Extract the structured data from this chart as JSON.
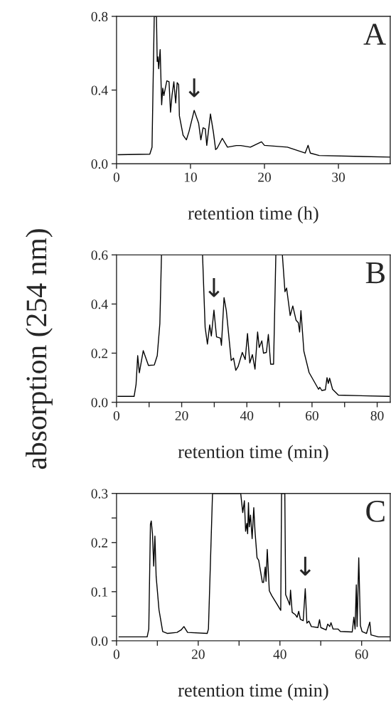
{
  "chart_data": [
    {
      "type": "line",
      "xlabel": "retention time (h)",
      "x": [
        0.2,
        4.5,
        4.8,
        5.1,
        5.4,
        5.5,
        5.6,
        5.7,
        5.9,
        6.1,
        6.25,
        6.4,
        6.8,
        7.1,
        7.3,
        7.5,
        7.75,
        8.0,
        8.2,
        8.4,
        8.5,
        9.0,
        9.45,
        9.8,
        10.5,
        11.1,
        11.4,
        11.7,
        12.0,
        12.2,
        12.7,
        13.1,
        13.4,
        13.6,
        14.3,
        15.0,
        16.2,
        16.8,
        18.1,
        19.6,
        20.0,
        23.1,
        25.5,
        25.9,
        26.2,
        27.4,
        37.0
      ],
      "series": [
        {
          "color": "#000000",
          "values": [
            0.049,
            0.052,
            0.09,
            0.8,
            0.8,
            0.555,
            0.58,
            0.516,
            0.62,
            0.32,
            0.41,
            0.37,
            0.45,
            0.445,
            0.28,
            0.37,
            0.445,
            0.33,
            0.44,
            0.43,
            0.26,
            0.155,
            0.13,
            0.175,
            0.29,
            0.22,
            0.13,
            0.195,
            0.19,
            0.1,
            0.27,
            0.17,
            0.077,
            0.084,
            0.138,
            0.09,
            0.099,
            0.099,
            0.09,
            0.119,
            0.1,
            0.09,
            0.058,
            0.1,
            0.058,
            0.045,
            0.036
          ]
        }
      ],
      "xlim": [
        0,
        37
      ],
      "ylim": [
        0,
        0.8
      ],
      "xticks": [
        0,
        10,
        20,
        30
      ],
      "yticks": [
        {
          "value": 0,
          "label": "0.0"
        },
        {
          "value": 0.4,
          "label": "0.4"
        },
        {
          "value": 0.8,
          "label": "0.8"
        }
      ],
      "annotations": [
        "A",
        {
          "text": "↓",
          "x": 10.5,
          "y": 0.29
        }
      ],
      "grid": false,
      "legend": false
    },
    {
      "type": "line",
      "xlabel": "retention time (min)",
      "ylabel": "absorption (254 nm)",
      "x": [
        0.4,
        5.4,
        6.0,
        6.5,
        7.0,
        8.2,
        9.8,
        11.6,
        12.5,
        13.3,
        13.8,
        26.4,
        27.2,
        27.9,
        28.6,
        29.1,
        29.9,
        30.7,
        31.9,
        32.2,
        33.0,
        33.7,
        35.2,
        35.9,
        36.6,
        37.3,
        38.6,
        39.5,
        40.2,
        40.9,
        41.7,
        42.5,
        43.3,
        43.8,
        44.6,
        45.1,
        46.0,
        46.6,
        47.3,
        48.2,
        48.9,
        50.9,
        51.7,
        52.2,
        53.3,
        54.1,
        55.1,
        55.8,
        56.2,
        56.6,
        57.5,
        59.1,
        62.0,
        62.4,
        63.0,
        64.1,
        64.6,
        65.0,
        65.4,
        66.3,
        68.1,
        83.7
      ],
      "series": [
        {
          "color": "#000000",
          "values": [
            0.024,
            0.024,
            0.073,
            0.19,
            0.12,
            0.21,
            0.15,
            0.152,
            0.19,
            0.32,
            0.6,
            0.6,
            0.305,
            0.237,
            0.315,
            0.27,
            0.375,
            0.266,
            0.261,
            0.232,
            0.426,
            0.373,
            0.17,
            0.18,
            0.13,
            0.145,
            0.203,
            0.174,
            0.28,
            0.16,
            0.194,
            0.135,
            0.286,
            0.223,
            0.25,
            0.2,
            0.203,
            0.276,
            0.155,
            0.155,
            0.6,
            0.6,
            0.45,
            0.465,
            0.353,
            0.392,
            0.334,
            0.324,
            0.286,
            0.373,
            0.208,
            0.121,
            0.053,
            0.061,
            0.048,
            0.051,
            0.1,
            0.077,
            0.098,
            0.053,
            0.029,
            0.024
          ]
        }
      ],
      "xlim": [
        0,
        84
      ],
      "ylim": [
        0,
        0.6
      ],
      "xticks": [
        0,
        {
          "value": 10,
          "label": null
        },
        20,
        {
          "value": 30,
          "label": null
        },
        40,
        {
          "value": 50,
          "label": null
        },
        60,
        {
          "value": 70,
          "label": null
        },
        80
      ],
      "yticks": [
        {
          "value": 0,
          "label": "0.0"
        },
        {
          "value": 0.2,
          "label": "0.2"
        },
        {
          "value": 0.4,
          "label": "0.4"
        },
        {
          "value": 0.6,
          "label": "0.6"
        }
      ],
      "annotations": [
        "B",
        {
          "text": "↓",
          "x": 29.9,
          "y": 0.375
        }
      ],
      "grid": false,
      "legend": false
    },
    {
      "type": "line",
      "xlabel": "retention time (min)",
      "x": [
        0.6,
        7.5,
        7.9,
        8.3,
        8.5,
        8.8,
        9.1,
        9.4,
        9.7,
        10.4,
        11.3,
        12.5,
        14.8,
        15.8,
        16.5,
        17.4,
        22.2,
        22.5,
        23.5,
        30.4,
        30.9,
        31.3,
        31.6,
        31.9,
        32.1,
        32.3,
        32.5,
        32.8,
        33.2,
        33.6,
        33.9,
        34.4,
        34.8,
        35.7,
        36.0,
        36.4,
        36.6,
        36.9,
        37.4,
        38.0,
        39.1,
        40.2,
        40.4,
        41.2,
        41.4,
        42.0,
        42.4,
        42.6,
        43.0,
        43.8,
        44.2,
        44.6,
        45.0,
        45.7,
        46.2,
        46.6,
        47.1,
        47.7,
        49.3,
        49.7,
        50.0,
        51.3,
        51.7,
        52.2,
        52.5,
        53.0,
        54.2,
        54.8,
        57.7,
        58.1,
        58.4,
        58.7,
        58.9,
        59.3,
        59.7,
        60.1,
        61.2,
        62.0,
        62.3,
        64.1,
        67.0
      ],
      "series": [
        {
          "color": "#000000",
          "values": [
            0.008,
            0.008,
            0.024,
            0.237,
            0.244,
            0.218,
            0.152,
            0.213,
            0.131,
            0.063,
            0.019,
            0.015,
            0.017,
            0.022,
            0.029,
            0.017,
            0.015,
            0.024,
            0.3,
            0.3,
            0.261,
            0.285,
            0.223,
            0.239,
            0.218,
            0.281,
            0.232,
            0.256,
            0.208,
            0.271,
            0.223,
            0.169,
            0.164,
            0.119,
            0.119,
            0.15,
            0.121,
            0.186,
            0.102,
            0.092,
            0.077,
            0.062,
            0.3,
            0.3,
            0.094,
            0.082,
            0.073,
            0.103,
            0.058,
            0.053,
            0.048,
            0.06,
            0.044,
            0.041,
            0.106,
            0.036,
            0.04,
            0.029,
            0.027,
            0.043,
            0.027,
            0.022,
            0.034,
            0.029,
            0.037,
            0.024,
            0.024,
            0.019,
            0.018,
            0.048,
            0.024,
            0.114,
            0.029,
            0.169,
            0.031,
            0.019,
            0.015,
            0.038,
            0.012,
            0.008,
            0.008
          ]
        }
      ],
      "xlim": [
        0,
        67
      ],
      "ylim": [
        0,
        0.3
      ],
      "xticks": [
        0,
        {
          "value": 10,
          "label": null
        },
        20,
        {
          "value": 30,
          "label": null
        },
        40,
        {
          "value": 50,
          "label": null
        },
        60
      ],
      "yticks": [
        {
          "value": 0,
          "label": "0.0"
        },
        {
          "value": 0.05,
          "label": null
        },
        {
          "value": 0.1,
          "label": "0.1"
        },
        {
          "value": 0.15,
          "label": null
        },
        {
          "value": 0.2,
          "label": "0.2"
        },
        {
          "value": 0.25,
          "label": null
        },
        {
          "value": 0.3,
          "label": "0.3"
        }
      ],
      "annotations": [
        "C",
        {
          "text": "↓",
          "x": 46.2,
          "y": 0.106
        }
      ],
      "grid": false,
      "legend": false
    }
  ]
}
